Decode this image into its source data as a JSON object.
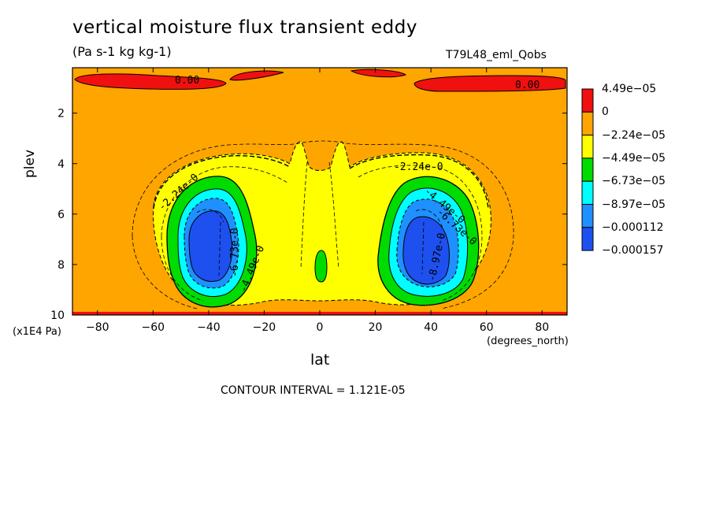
{
  "header": {
    "title": "vertical moisture flux transient eddy",
    "units": "(Pa s-1 kg kg-1)",
    "run": "T79L48_eml_Qobs"
  },
  "footer": {
    "contour_interval": "CONTOUR INTERVAL = 1.121E-05"
  },
  "colors": {
    "red": "#f01010",
    "orange": "#ffa500",
    "yellow": "#ffff00",
    "green": "#00dc00",
    "cyan": "#00ffff",
    "lightblue": "#1e90ff",
    "blue": "#1e50f0"
  },
  "chart_data": {
    "type": "heatmap",
    "title": "vertical moisture flux transient eddy",
    "subtitle": "(Pa s-1 kg kg-1)",
    "xlabel": "lat",
    "ylabel": "plev",
    "x_unit": "(degrees_north)",
    "y_unit": "(x1E4 Pa)",
    "xlim": [
      -89,
      89
    ],
    "ylim": [
      0.2,
      10
    ],
    "y_inverted": true,
    "x_ticks": [
      -80,
      -60,
      -40,
      -20,
      0,
      20,
      40,
      60,
      80
    ],
    "y_ticks": [
      2,
      4,
      6,
      8,
      10
    ],
    "legend": {
      "placement": "right",
      "levels": [
        "4.49e-05",
        "0",
        "-2.24e-05",
        "-4.49e-05",
        "-6.73e-05",
        "-8.97e-05",
        "-0.000112",
        "-0.000157"
      ],
      "colors": [
        "#f01010",
        "#ffa500",
        "#ffff00",
        "#00dc00",
        "#00ffff",
        "#1e90ff",
        "#1e50f0"
      ]
    },
    "contour_labels": [
      {
        "text": "0.00",
        "x": -47,
        "y": 0.6
      },
      {
        "text": "0.00",
        "x": 72,
        "y": 0.85
      },
      {
        "text": "-2.24e-0",
        "x": -51,
        "y": 5.0
      },
      {
        "text": "-2.24e-0",
        "x": 38,
        "y": 4.2
      },
      {
        "text": "-4.49e-0",
        "x": 50,
        "y": 5.3
      },
      {
        "text": "-6.73e-0",
        "x": 52,
        "y": 6.1
      },
      {
        "text": "-8.97e-0",
        "x": 44,
        "y": 7.8
      },
      {
        "text": "-4.49e-0",
        "x": -26,
        "y": 8.7
      },
      {
        "text": "-6.73e-0",
        "x": -29,
        "y": 7.0
      }
    ],
    "features": [
      {
        "value_range": "-0.000157 to -0.000112",
        "center_lat": -39,
        "center_plev": 7.4
      },
      {
        "value_range": "-0.000157 to -0.000112",
        "center_lat": 38,
        "center_plev": 7.3
      },
      {
        "value_range": "-6.73e-05 to -4.49e-05",
        "center_lat": 0,
        "center_plev": 8.0
      },
      {
        "value_range": "0 to 4.49e-05",
        "center_lat": -70,
        "center_plev": 0.6
      },
      {
        "value_range": "0 to 4.49e-05",
        "center_lat": -30,
        "center_plev": 0.5
      },
      {
        "value_range": "0 to 4.49e-05",
        "center_lat": 30,
        "center_plev": 0.5
      },
      {
        "value_range": "0 to 4.49e-05",
        "center_lat": 68,
        "center_plev": 0.7
      }
    ]
  }
}
